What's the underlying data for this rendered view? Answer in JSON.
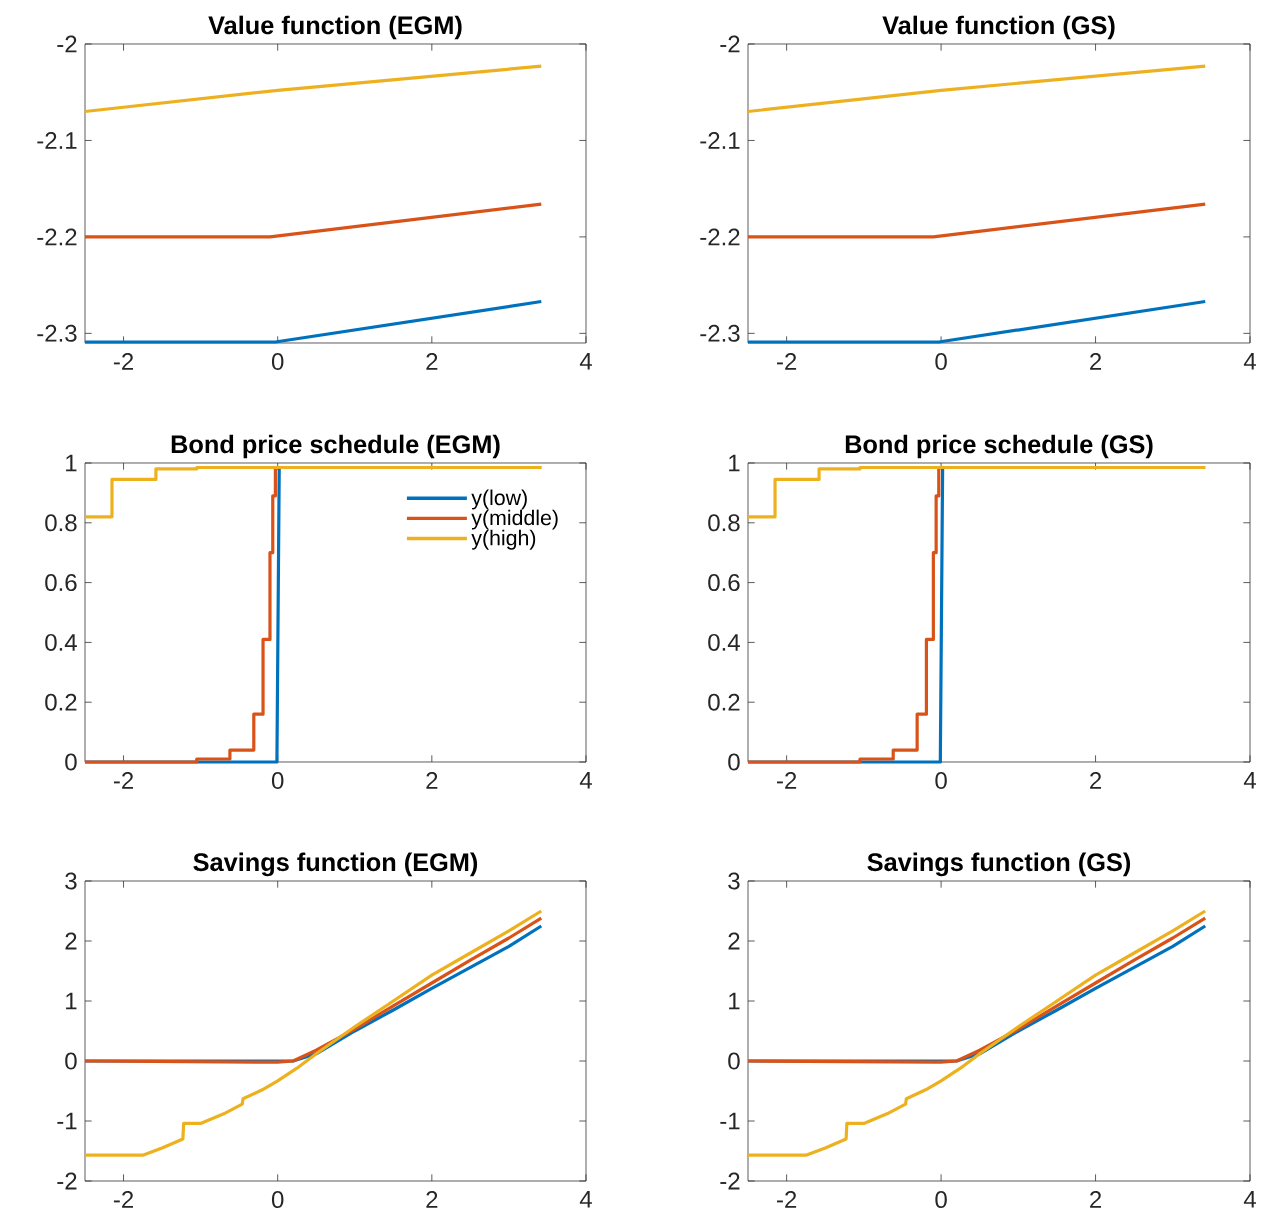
{
  "chart_data": [
    {
      "type": "line",
      "title": "Value function (EGM)",
      "xlim": [
        -2.5,
        4
      ],
      "ylim": [
        -2.31,
        -2
      ],
      "xticks": [
        -2,
        0,
        2,
        4
      ],
      "yticks": [
        -2.3,
        -2.2,
        -2.1,
        -2
      ],
      "series": [
        {
          "color": "#0072bd",
          "x": [
            -2.5,
            -0.03,
            3.42
          ],
          "values": [
            -2.309,
            -2.309,
            -2.267
          ]
        },
        {
          "color": "#d95319",
          "x": [
            -2.5,
            -0.1,
            3.42
          ],
          "values": [
            -2.2,
            -2.2,
            -2.166
          ]
        },
        {
          "color": "#edb120",
          "x": [
            -2.5,
            0,
            3.42
          ],
          "values": [
            -2.07,
            -2.048,
            -2.023
          ]
        }
      ]
    },
    {
      "type": "line",
      "title": "Value function (GS)",
      "xlim": [
        -2.5,
        4
      ],
      "ylim": [
        -2.31,
        -2
      ],
      "xticks": [
        -2,
        0,
        2,
        4
      ],
      "yticks": [
        -2.3,
        -2.2,
        -2.1,
        -2
      ],
      "series": [
        {
          "color": "#0072bd",
          "x": [
            -2.5,
            -0.03,
            3.42
          ],
          "values": [
            -2.309,
            -2.309,
            -2.267
          ]
        },
        {
          "color": "#d95319",
          "x": [
            -2.5,
            -0.1,
            3.42
          ],
          "values": [
            -2.2,
            -2.2,
            -2.166
          ]
        },
        {
          "color": "#edb120",
          "x": [
            -2.5,
            0,
            3.42
          ],
          "values": [
            -2.07,
            -2.048,
            -2.023
          ]
        }
      ]
    },
    {
      "type": "line",
      "title": "Bond price schedule (EGM)",
      "xlim": [
        -2.5,
        4
      ],
      "ylim": [
        0,
        1
      ],
      "xticks": [
        -2,
        0,
        2,
        4
      ],
      "yticks": [
        0,
        0.2,
        0.4,
        0.6,
        0.8,
        1
      ],
      "legend": "top right",
      "series": [
        {
          "name": "y(low)",
          "color": "#0072bd",
          "x": [
            -2.5,
            -0.01,
            0.02
          ],
          "values": [
            0,
            0,
            0.985
          ]
        },
        {
          "name": "y(middle)",
          "color": "#d95319",
          "x": [
            -2.5,
            -1.05,
            -1.05,
            -0.62,
            -0.62,
            -0.31,
            -0.31,
            -0.19,
            -0.19,
            -0.1,
            -0.1,
            -0.064,
            -0.064,
            -0.03,
            -0.03,
            3.42
          ],
          "values": [
            0,
            0,
            0.01,
            0.01,
            0.04,
            0.04,
            0.16,
            0.16,
            0.41,
            0.41,
            0.7,
            0.7,
            0.89,
            0.89,
            0.985,
            0.985
          ]
        },
        {
          "name": "y(high)",
          "color": "#edb120",
          "x": [
            -2.5,
            -2.15,
            -2.15,
            -1.58,
            -1.58,
            -1.05,
            -1.05,
            3.42
          ],
          "values": [
            0.82,
            0.82,
            0.945,
            0.945,
            0.98,
            0.98,
            0.985,
            0.985
          ]
        }
      ]
    },
    {
      "type": "line",
      "title": "Bond price schedule (GS)",
      "xlim": [
        -2.5,
        4
      ],
      "ylim": [
        0,
        1
      ],
      "xticks": [
        -2,
        0,
        2,
        4
      ],
      "yticks": [
        0,
        0.2,
        0.4,
        0.6,
        0.8,
        1
      ],
      "series": [
        {
          "color": "#0072bd",
          "x": [
            -2.5,
            -0.01,
            0.02
          ],
          "values": [
            0,
            0,
            0.985
          ]
        },
        {
          "color": "#d95319",
          "x": [
            -2.5,
            -1.05,
            -1.05,
            -0.62,
            -0.62,
            -0.31,
            -0.31,
            -0.19,
            -0.19,
            -0.1,
            -0.1,
            -0.064,
            -0.064,
            -0.03,
            -0.03,
            3.42
          ],
          "values": [
            0,
            0,
            0.01,
            0.01,
            0.04,
            0.04,
            0.16,
            0.16,
            0.41,
            0.41,
            0.7,
            0.7,
            0.89,
            0.89,
            0.985,
            0.985
          ]
        },
        {
          "color": "#edb120",
          "x": [
            -2.5,
            -2.15,
            -2.15,
            -1.58,
            -1.58,
            -1.05,
            -1.05,
            3.42
          ],
          "values": [
            0.82,
            0.82,
            0.945,
            0.945,
            0.98,
            0.98,
            0.985,
            0.985
          ]
        }
      ]
    },
    {
      "type": "line",
      "title": "Savings function (EGM)",
      "xlim": [
        -2.5,
        4
      ],
      "ylim": [
        -2,
        3
      ],
      "xticks": [
        -2,
        0,
        2,
        4
      ],
      "yticks": [
        -2,
        -1,
        0,
        1,
        2,
        3
      ],
      "series": [
        {
          "color": "#0072bd",
          "x": [
            -2.5,
            0.2,
            0.5,
            1,
            1.5,
            2,
            2.5,
            3,
            3.42
          ],
          "values": [
            0,
            0,
            0.12,
            0.5,
            0.85,
            1.21,
            1.56,
            1.91,
            2.25
          ]
        },
        {
          "color": "#d95319",
          "x": [
            -2.5,
            -0.05,
            0,
            0.2,
            0.5,
            1,
            1.5,
            2,
            2.5,
            3,
            3.42
          ],
          "values": [
            0,
            -0.02,
            -0.02,
            0,
            0.18,
            0.53,
            0.92,
            1.3,
            1.68,
            2.05,
            2.38
          ]
        },
        {
          "color": "#edb120",
          "x": [
            -2.5,
            -1.75,
            -1.5,
            -1.23,
            -1.22,
            -1.0,
            -0.7,
            -0.46,
            -0.45,
            -0.2,
            0,
            0.25,
            0.5,
            1,
            1.5,
            2,
            2.5,
            3,
            3.42
          ],
          "values": [
            -1.57,
            -1.57,
            -1.45,
            -1.3,
            -1.04,
            -1.04,
            -0.88,
            -0.72,
            -0.63,
            -0.48,
            -0.33,
            -0.12,
            0.12,
            0.57,
            1.0,
            1.43,
            1.8,
            2.17,
            2.5
          ]
        }
      ]
    },
    {
      "type": "line",
      "title": "Savings function (GS)",
      "xlim": [
        -2.5,
        4
      ],
      "ylim": [
        -2,
        3
      ],
      "xticks": [
        -2,
        0,
        2,
        4
      ],
      "yticks": [
        -2,
        -1,
        0,
        1,
        2,
        3
      ],
      "series": [
        {
          "color": "#0072bd",
          "x": [
            -2.5,
            0.2,
            0.5,
            1,
            1.5,
            2,
            2.5,
            3,
            3.42
          ],
          "values": [
            0,
            0,
            0.12,
            0.5,
            0.85,
            1.21,
            1.56,
            1.91,
            2.25
          ]
        },
        {
          "color": "#d95319",
          "x": [
            -2.5,
            -0.05,
            0,
            0.2,
            0.5,
            1,
            1.5,
            2,
            2.5,
            3,
            3.42
          ],
          "values": [
            0,
            -0.02,
            -0.02,
            0,
            0.18,
            0.53,
            0.92,
            1.3,
            1.68,
            2.05,
            2.38
          ]
        },
        {
          "color": "#edb120",
          "x": [
            -2.5,
            -1.75,
            -1.5,
            -1.23,
            -1.22,
            -1.0,
            -0.7,
            -0.46,
            -0.45,
            -0.2,
            0,
            0.25,
            0.5,
            1,
            1.5,
            2,
            2.5,
            3,
            3.42
          ],
          "values": [
            -1.57,
            -1.57,
            -1.45,
            -1.3,
            -1.04,
            -1.04,
            -0.88,
            -0.72,
            -0.63,
            -0.48,
            -0.33,
            -0.12,
            0.12,
            0.57,
            1.0,
            1.43,
            1.8,
            2.17,
            2.5
          ]
        }
      ]
    }
  ]
}
